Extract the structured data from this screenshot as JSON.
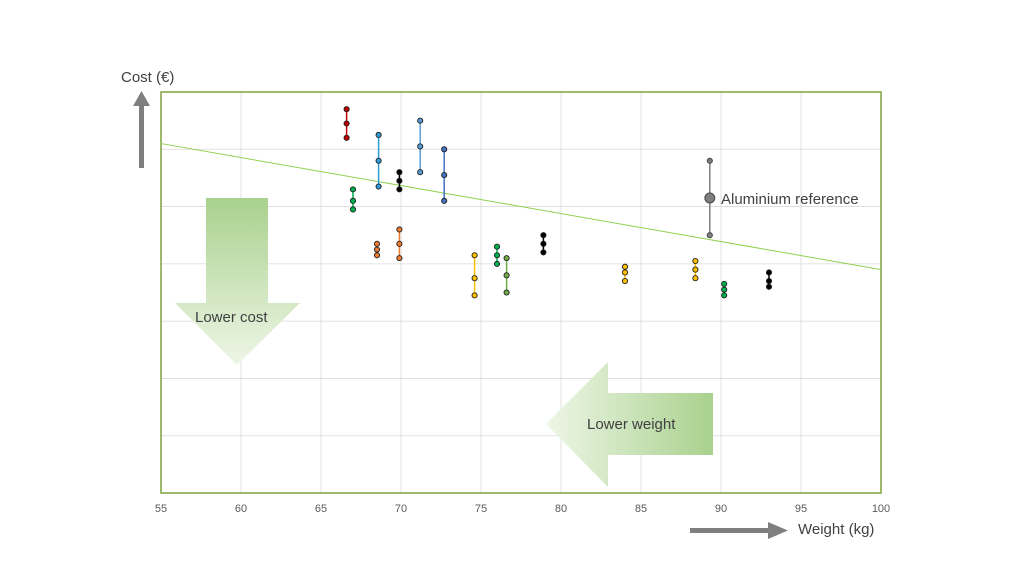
{
  "chart_data": {
    "type": "scatter",
    "title": "",
    "xlabel": "Weight (kg)",
    "ylabel": "Cost (€)",
    "xlim": [
      55,
      100
    ],
    "x_ticks": [
      "55",
      "60",
      "65",
      "70",
      "75",
      "80",
      "85",
      "90",
      "95",
      "100"
    ],
    "ylim": [
      0,
      7
    ],
    "grid": true,
    "trend_line": {
      "x": [
        55,
        100
      ],
      "y": [
        6.1,
        3.9
      ]
    },
    "reference": {
      "label": "Aluminium reference",
      "x": 89.3,
      "low": 4.5,
      "mid": 5.15,
      "high": 5.8
    },
    "annotations": {
      "lower_cost": "Lower cost",
      "lower_weight": "Lower weight"
    },
    "series": [
      {
        "x": 66.6,
        "low": 6.2,
        "mid": 6.45,
        "high": 6.7,
        "color": "#c00000"
      },
      {
        "x": 67.0,
        "low": 4.95,
        "mid": 5.1,
        "high": 5.3,
        "color": "#00b050"
      },
      {
        "x": 68.5,
        "low": 4.15,
        "mid": 4.25,
        "high": 4.35,
        "color": "#ed7d31"
      },
      {
        "x": 68.6,
        "low": 5.35,
        "mid": 5.8,
        "high": 6.25,
        "color": "#2e9bd6"
      },
      {
        "x": 69.9,
        "low": 5.3,
        "mid": 5.45,
        "high": 5.6,
        "color": "#000000"
      },
      {
        "x": 69.9,
        "low": 4.1,
        "mid": 4.35,
        "high": 4.6,
        "color": "#ed7d31"
      },
      {
        "x": 71.2,
        "low": 5.6,
        "mid": 6.05,
        "high": 6.5,
        "color": "#5b9bd5"
      },
      {
        "x": 72.7,
        "low": 5.1,
        "mid": 5.55,
        "high": 6.0,
        "color": "#4472c4"
      },
      {
        "x": 74.6,
        "low": 3.45,
        "mid": 3.75,
        "high": 4.15,
        "color": "#ffc000"
      },
      {
        "x": 76.0,
        "low": 4.0,
        "mid": 4.15,
        "high": 4.3,
        "color": "#00b050"
      },
      {
        "x": 76.6,
        "low": 3.5,
        "mid": 3.8,
        "high": 4.1,
        "color": "#70ad47"
      },
      {
        "x": 78.9,
        "low": 4.2,
        "mid": 4.35,
        "high": 4.5,
        "color": "#000000"
      },
      {
        "x": 84.0,
        "low": 3.7,
        "mid": 3.85,
        "high": 3.95,
        "color": "#ffc000"
      },
      {
        "x": 88.4,
        "low": 3.75,
        "mid": 3.9,
        "high": 4.05,
        "color": "#ffc000"
      },
      {
        "x": 90.2,
        "low": 3.45,
        "mid": 3.55,
        "high": 3.65,
        "color": "#00b050"
      },
      {
        "x": 93.0,
        "low": 3.6,
        "mid": 3.7,
        "high": 3.85,
        "color": "#000000"
      }
    ]
  }
}
